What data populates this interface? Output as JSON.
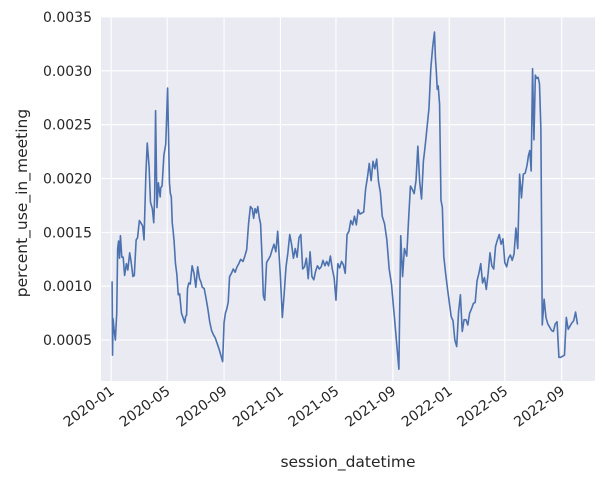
{
  "chart_data": {
    "type": "line",
    "title": "",
    "xlabel": "session_datetime",
    "ylabel": "percent_use_in_meeting",
    "ylim": [
      0.00012,
      0.0035
    ],
    "xlim": [
      "2019-12-10",
      "2022-11-12"
    ],
    "grid": true,
    "background": "#eaeaf2",
    "line_color": "#4c72b0",
    "y_ticks": [
      {
        "value": 0.0005,
        "label": "0.0005"
      },
      {
        "value": 0.001,
        "label": "0.0010"
      },
      {
        "value": 0.0015,
        "label": "0.0015"
      },
      {
        "value": 0.002,
        "label": "0.0020"
      },
      {
        "value": 0.0025,
        "label": "0.0025"
      },
      {
        "value": 0.003,
        "label": "0.0030"
      },
      {
        "value": 0.0035,
        "label": "0.0035"
      }
    ],
    "x_ticks": [
      {
        "value": "2020-01-01",
        "label": "2020-01"
      },
      {
        "value": "2020-05-01",
        "label": "2020-05"
      },
      {
        "value": "2020-09-01",
        "label": "2020-09"
      },
      {
        "value": "2021-01-01",
        "label": "2021-01"
      },
      {
        "value": "2021-05-01",
        "label": "2021-05"
      },
      {
        "value": "2021-09-01",
        "label": "2021-09"
      },
      {
        "value": "2022-01-01",
        "label": "2022-01"
      },
      {
        "value": "2022-05-01",
        "label": "2022-05"
      },
      {
        "value": "2022-09-01",
        "label": "2022-09"
      }
    ],
    "series": [
      {
        "x": [
          "2020-01-03",
          "2020-01-04",
          "2020-01-05",
          "2020-01-07",
          "2020-01-10",
          "2020-01-13",
          "2020-01-15",
          "2020-01-17",
          "2020-01-19",
          "2020-01-21",
          "2020-01-24",
          "2020-01-27",
          "2020-01-30",
          "2020-02-03",
          "2020-02-06",
          "2020-02-10",
          "2020-02-13",
          "2020-02-17",
          "2020-02-20",
          "2020-02-24",
          "2020-02-27",
          "2020-03-02",
          "2020-03-05",
          "2020-03-09",
          "2020-03-12",
          "2020-03-16",
          "2020-03-19",
          "2020-03-23",
          "2020-03-26",
          "2020-03-30",
          "2020-04-02",
          "2020-04-04",
          "2020-04-06",
          "2020-04-09",
          "2020-04-12",
          "2020-04-14",
          "2020-04-16",
          "2020-04-17",
          "2020-04-18",
          "2020-04-20",
          "2020-04-24",
          "2020-04-28",
          "2020-05-02",
          "2020-05-06",
          "2020-05-08",
          "2020-05-10",
          "2020-05-12",
          "2020-05-14",
          "2020-05-16",
          "2020-05-19",
          "2020-05-22",
          "2020-05-25",
          "2020-05-28",
          "2020-06-01",
          "2020-06-05",
          "2020-06-08",
          "2020-06-10",
          "2020-06-12",
          "2020-06-14",
          "2020-06-17",
          "2020-06-20",
          "2020-06-24",
          "2020-06-28",
          "2020-07-02",
          "2020-07-06",
          "2020-07-10",
          "2020-07-13",
          "2020-07-16",
          "2020-07-20",
          "2020-07-24",
          "2020-07-28",
          "2020-08-01",
          "2020-08-05",
          "2020-08-09",
          "2020-08-13",
          "2020-08-17",
          "2020-08-21",
          "2020-08-25",
          "2020-08-29",
          "2020-09-01",
          "2020-09-04",
          "2020-09-07",
          "2020-09-10",
          "2020-09-13",
          "2020-09-17",
          "2020-09-21",
          "2020-09-25",
          "2020-09-29",
          "2020-10-03",
          "2020-10-07",
          "2020-10-12",
          "2020-10-16",
          "2020-10-20",
          "2020-10-24",
          "2020-10-28",
          "2020-11-01",
          "2020-11-04",
          "2020-11-07",
          "2020-11-10",
          "2020-11-13",
          "2020-11-16",
          "2020-11-19",
          "2020-11-22",
          "2020-11-25",
          "2020-11-28",
          "2020-12-02",
          "2020-12-06",
          "2020-12-10",
          "2020-12-14",
          "2020-12-18",
          "2020-12-22",
          "2020-12-26",
          "2021-01-01",
          "2021-01-05",
          "2021-01-09",
          "2021-01-13",
          "2021-01-17",
          "2021-01-21",
          "2021-01-25",
          "2021-01-29",
          "2021-02-02",
          "2021-02-06",
          "2021-02-10",
          "2021-02-14",
          "2021-02-18",
          "2021-02-22",
          "2021-02-26",
          "2021-03-02",
          "2021-03-06",
          "2021-03-10",
          "2021-03-14",
          "2021-03-18",
          "2021-03-22",
          "2021-03-26",
          "2021-03-30",
          "2021-04-03",
          "2021-04-07",
          "2021-04-11",
          "2021-04-15",
          "2021-04-19",
          "2021-04-23",
          "2021-04-27",
          "2021-05-01",
          "2021-05-05",
          "2021-05-09",
          "2021-05-13",
          "2021-05-17",
          "2021-05-21",
          "2021-05-25",
          "2021-05-29",
          "2021-06-02",
          "2021-06-06",
          "2021-06-10",
          "2021-06-14",
          "2021-06-18",
          "2021-06-22",
          "2021-06-26",
          "2021-06-30",
          "2021-07-04",
          "2021-07-08",
          "2021-07-12",
          "2021-07-16",
          "2021-07-20",
          "2021-07-24",
          "2021-07-28",
          "2021-08-01",
          "2021-08-05",
          "2021-08-09",
          "2021-08-14",
          "2021-08-19",
          "2021-08-24",
          "2021-08-29",
          "2021-09-01",
          "2021-09-04",
          "2021-09-07",
          "2021-09-10",
          "2021-09-14",
          "2021-09-18",
          "2021-09-22",
          "2021-09-26",
          "2021-10-01",
          "2021-10-05",
          "2021-10-09",
          "2021-10-13",
          "2021-10-17",
          "2021-10-21",
          "2021-10-25",
          "2021-10-29",
          "2021-11-02",
          "2021-11-06",
          "2021-11-10",
          "2021-11-14",
          "2021-11-18",
          "2021-11-22",
          "2021-11-26",
          "2021-11-30",
          "2021-12-02",
          "2021-12-04",
          "2021-12-06",
          "2021-12-08",
          "2021-12-11",
          "2021-12-14",
          "2021-12-17",
          "2021-12-20",
          "2021-12-24",
          "2021-12-28",
          "2022-01-01",
          "2022-01-05",
          "2022-01-09",
          "2022-01-13",
          "2022-01-17",
          "2022-01-21",
          "2022-01-25",
          "2022-01-29",
          "2022-02-02",
          "2022-02-06",
          "2022-02-10",
          "2022-02-14",
          "2022-02-18",
          "2022-02-22",
          "2022-02-26",
          "2022-03-02",
          "2022-03-06",
          "2022-03-10",
          "2022-03-14",
          "2022-03-18",
          "2022-03-22",
          "2022-03-26",
          "2022-03-30",
          "2022-04-03",
          "2022-04-07",
          "2022-04-11",
          "2022-04-15",
          "2022-04-19",
          "2022-04-23",
          "2022-04-27",
          "2022-05-01",
          "2022-05-05",
          "2022-05-09",
          "2022-05-13",
          "2022-05-17",
          "2022-05-21",
          "2022-05-25",
          "2022-05-29",
          "2022-06-02",
          "2022-06-06",
          "2022-06-10",
          "2022-06-14",
          "2022-06-18",
          "2022-06-21",
          "2022-06-24",
          "2022-06-27",
          "2022-06-30",
          "2022-07-03",
          "2022-07-06",
          "2022-07-09",
          "2022-07-12",
          "2022-07-15",
          "2022-07-18",
          "2022-07-21",
          "2022-07-25",
          "2022-07-29",
          "2022-08-02",
          "2022-08-06",
          "2022-08-10",
          "2022-08-14",
          "2022-08-18",
          "2022-08-22",
          "2022-08-26",
          "2022-08-30",
          "2022-09-03",
          "2022-09-07",
          "2022-09-11",
          "2022-09-15",
          "2022-09-19",
          "2022-09-23",
          "2022-09-27",
          "2022-10-01",
          "2022-10-05"
        ],
        "y": [
          0.00104,
          0.00036,
          0.0007,
          0.00061,
          0.0005,
          0.00075,
          0.00135,
          0.00142,
          0.00126,
          0.00147,
          0.00127,
          0.00127,
          0.0011,
          0.00121,
          0.00115,
          0.00131,
          0.00123,
          0.00109,
          0.0011,
          0.00143,
          0.00145,
          0.00161,
          0.00159,
          0.00156,
          0.00143,
          0.00204,
          0.00233,
          0.00211,
          0.00178,
          0.00172,
          0.00159,
          0.00183,
          0.00263,
          0.00173,
          0.00196,
          0.00189,
          0.00183,
          0.00191,
          0.00192,
          0.00193,
          0.00222,
          0.00232,
          0.00284,
          0.00196,
          0.00186,
          0.00183,
          0.00159,
          0.00151,
          0.00142,
          0.00121,
          0.00111,
          0.00092,
          0.00093,
          0.00075,
          0.0007,
          0.00066,
          0.00072,
          0.00073,
          0.00098,
          0.00103,
          0.00102,
          0.00119,
          0.00112,
          0.00099,
          0.00118,
          0.00107,
          0.00104,
          0.00099,
          0.00098,
          0.00089,
          0.00079,
          0.00067,
          0.00059,
          0.00055,
          0.00052,
          0.00047,
          0.00042,
          0.00036,
          0.0003,
          0.00066,
          0.00075,
          0.00079,
          0.00085,
          0.00109,
          0.00112,
          0.00116,
          0.00113,
          0.00118,
          0.00121,
          0.00125,
          0.00123,
          0.00128,
          0.00134,
          0.00158,
          0.00174,
          0.00172,
          0.00163,
          0.00172,
          0.00168,
          0.00174,
          0.00164,
          0.00158,
          0.00128,
          0.00091,
          0.00087,
          0.00122,
          0.00125,
          0.00128,
          0.00134,
          0.00139,
          0.00132,
          0.00151,
          0.00108,
          0.00071,
          0.00093,
          0.00118,
          0.00131,
          0.00148,
          0.00139,
          0.00126,
          0.00135,
          0.00127,
          0.00145,
          0.00148,
          0.00116,
          0.00118,
          0.00126,
          0.00107,
          0.00132,
          0.00109,
          0.00106,
          0.00114,
          0.00119,
          0.00116,
          0.00118,
          0.00124,
          0.00119,
          0.00123,
          0.00119,
          0.00128,
          0.00116,
          0.00108,
          0.00087,
          0.00121,
          0.00117,
          0.00123,
          0.0012,
          0.00112,
          0.00148,
          0.00151,
          0.00161,
          0.00157,
          0.00165,
          0.00157,
          0.00171,
          0.00167,
          0.00168,
          0.00169,
          0.0019,
          0.00201,
          0.00214,
          0.00198,
          0.00216,
          0.00209,
          0.00218,
          0.00197,
          0.00187,
          0.00165,
          0.00158,
          0.00143,
          0.00116,
          0.00102,
          0.00087,
          0.00073,
          0.00058,
          0.00043,
          0.00023,
          0.00147,
          0.00109,
          0.00135,
          0.00128,
          0.00162,
          0.00193,
          0.0019,
          0.00186,
          0.00198,
          0.0023,
          0.00197,
          0.00181,
          0.00216,
          0.00231,
          0.00248,
          0.00265,
          0.00302,
          0.00322,
          0.00336,
          0.00312,
          0.00299,
          0.00283,
          0.00286,
          0.00269,
          0.0018,
          0.00173,
          0.00128,
          0.00112,
          0.00098,
          0.00085,
          0.00072,
          0.00068,
          0.0005,
          0.00044,
          0.00076,
          0.00092,
          0.00058,
          0.00069,
          0.00069,
          0.00064,
          0.00075,
          0.00079,
          0.00084,
          0.00085,
          0.00105,
          0.00112,
          0.00121,
          0.00103,
          0.00108,
          0.00097,
          0.00112,
          0.00131,
          0.00119,
          0.00116,
          0.00137,
          0.00143,
          0.00148,
          0.00139,
          0.00144,
          0.00122,
          0.00118,
          0.00126,
          0.00129,
          0.00124,
          0.0013,
          0.00154,
          0.00135,
          0.00204,
          0.00182,
          0.00204,
          0.00205,
          0.00212,
          0.00221,
          0.00226,
          0.00207,
          0.00302,
          0.00236,
          0.00296,
          0.00293,
          0.00294,
          0.00288,
          0.00246,
          0.00064,
          0.00088,
          0.00071,
          0.00065,
          0.00062,
          0.00059,
          0.00058,
          0.00065,
          0.00067,
          0.00034,
          0.00034,
          0.00035,
          0.00036,
          0.00071,
          0.0006,
          0.00063,
          0.00066,
          0.00068,
          0.00076,
          0.00065
        ]
      }
    ]
  }
}
